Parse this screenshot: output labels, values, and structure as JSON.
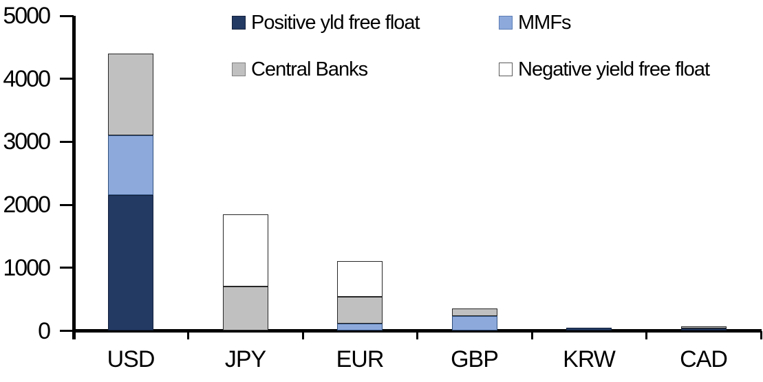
{
  "chart_data": {
    "type": "bar",
    "stacked": true,
    "title": "",
    "xlabel": "",
    "ylabel": "",
    "categories": [
      "USD",
      "JPY",
      "EUR",
      "GBP",
      "KRW",
      "CAD"
    ],
    "series": [
      {
        "name": "Positive yld free float",
        "color": "#233A63",
        "bar_border": "#13213C",
        "swatch_border": "#13213C",
        "values": [
          2150,
          0,
          0,
          0,
          45,
          35
        ]
      },
      {
        "name": "MMFs",
        "color": "#8DA9DB",
        "bar_border": "#2E4D7B",
        "swatch_border": "#5B7DB5",
        "values": [
          950,
          0,
          110,
          230,
          0,
          0
        ]
      },
      {
        "name": "Central Banks",
        "color": "#C0C0C0",
        "bar_border": "#262626",
        "swatch_border": "#808080",
        "values": [
          1300,
          700,
          430,
          120,
          0,
          40
        ]
      },
      {
        "name": "Negative yield free float",
        "color": "#FFFFFF",
        "bar_border": "#262626",
        "swatch_border": "#595959",
        "values": [
          0,
          1150,
          570,
          0,
          0,
          0
        ]
      }
    ],
    "ylim": [
      0,
      5000
    ],
    "yticks": [
      0,
      1000,
      2000,
      3000,
      4000,
      5000
    ],
    "grid": false,
    "legend_position": "top-inside",
    "legend_rows": [
      [
        "Positive yld free float",
        "MMFs"
      ],
      [
        "Central Banks",
        "Negative yield free float"
      ]
    ],
    "axis_color": "#000000",
    "text_color": "#000000"
  }
}
